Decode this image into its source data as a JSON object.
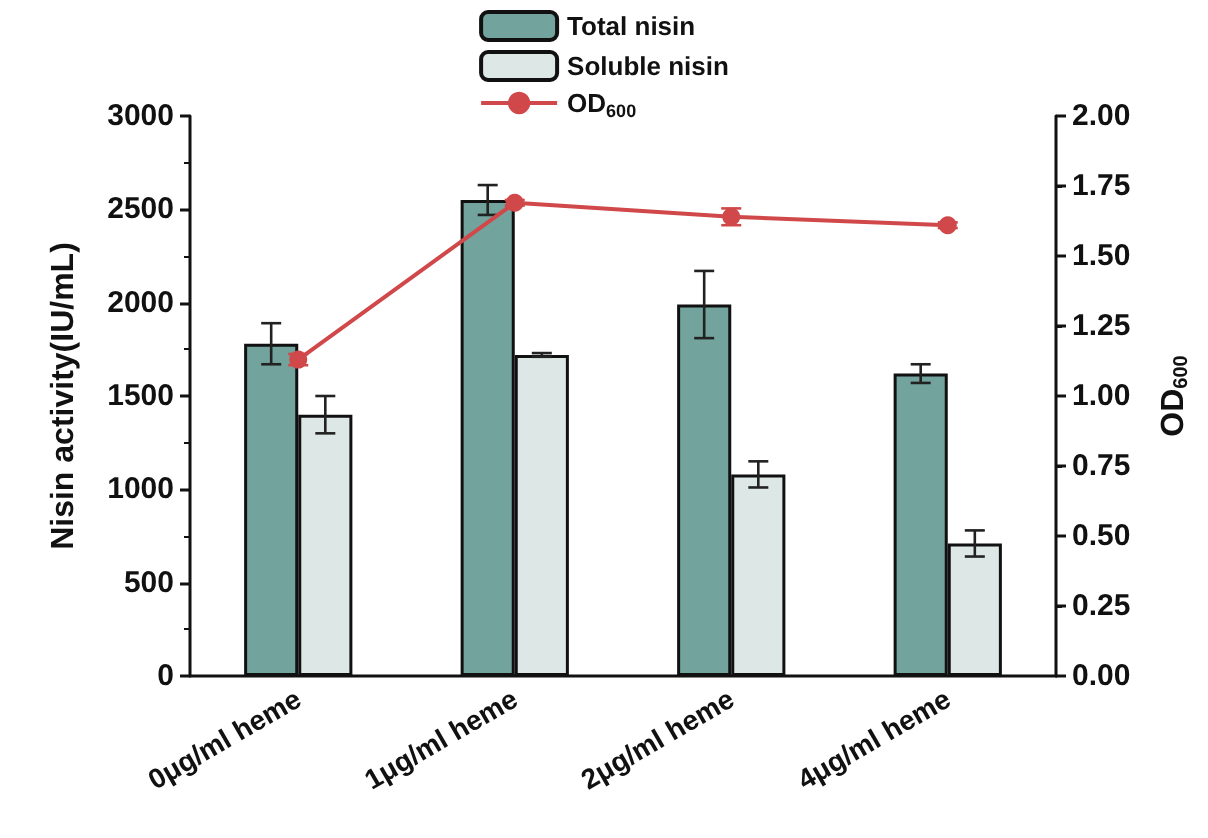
{
  "chart_data": {
    "type": "bar",
    "categories": [
      "0μg/ml heme",
      "1μg/ml heme",
      "2μg/ml heme",
      "4μg/ml heme"
    ],
    "ylabel": "Nisin activity(IU/mL)",
    "y2label": "OD$_{600}$",
    "series": [
      {
        "name": "Total nisin",
        "color": "#72a39c",
        "values": [
          1780,
          2550,
          1990,
          1620
        ],
        "errors": [
          110,
          80,
          180,
          50
        ]
      },
      {
        "name": "Soluble nisin",
        "color": "#dde8e6",
        "values": [
          1400,
          1720,
          1080,
          710
        ],
        "errors": [
          100,
          10,
          70,
          70
        ]
      },
      {
        "name": "OD$_{600}$",
        "type": "line",
        "axis": "y2",
        "color": "#d0484a",
        "marker": "circle",
        "values": [
          1.13,
          1.69,
          1.64,
          1.61
        ],
        "errors": [
          0.02,
          0.01,
          0.03,
          0.01
        ]
      }
    ],
    "ylim": [
      0,
      3000
    ],
    "yticks": [
      0,
      500,
      1000,
      1500,
      2000,
      2500,
      3000
    ],
    "y2lim": [
      0,
      2
    ],
    "y2ticks": [
      {
        "value": 0,
        "label": "0.00"
      },
      {
        "value": 0.25,
        "label": "0.25"
      },
      {
        "value": 0.5,
        "label": "0.50"
      },
      {
        "value": 0.75,
        "label": "0.75"
      },
      {
        "value": 1,
        "label": "1.00"
      },
      {
        "value": 1.25,
        "label": "1.25"
      },
      {
        "value": 1.5,
        "label": "1.50"
      },
      {
        "value": 1.75,
        "label": "1.75"
      },
      {
        "value": 2,
        "label": "2.00"
      }
    ],
    "grid": false,
    "legend": "top"
  }
}
